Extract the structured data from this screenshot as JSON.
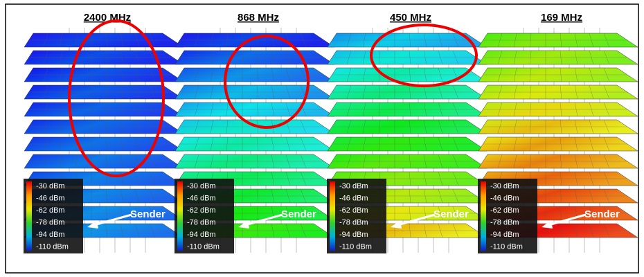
{
  "panels": [
    {
      "title": "2400 MHz"
    },
    {
      "title": "868 MHz"
    },
    {
      "title": "450 MHz"
    },
    {
      "title": "169 MHz"
    }
  ],
  "legend": {
    "labels": [
      "-30 dBm",
      "-46 dBm",
      "-62 dBm",
      "-78 dBm",
      "-94 dBm",
      "-110 dBm"
    ]
  },
  "annotation": "Sender"
}
